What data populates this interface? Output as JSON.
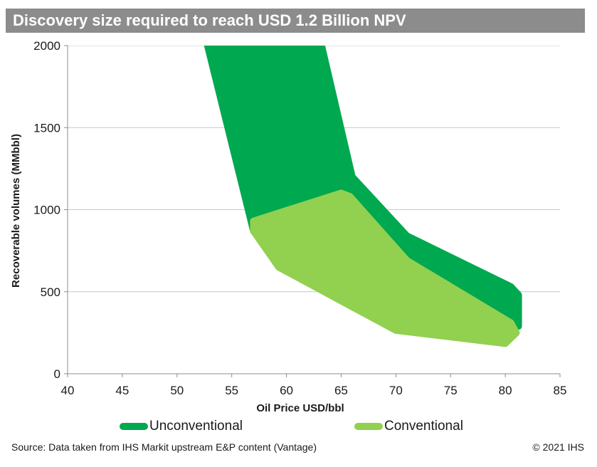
{
  "header": {
    "title": "Discovery size required to reach USD 1.2 Billion NPV"
  },
  "chart_data": {
    "type": "area",
    "title": "Discovery size required to reach USD 1.2 Billion NPV",
    "xlabel": "Oil Price USD/bbl",
    "ylabel": "Recoverable volumes (MMbbl)",
    "xlim": [
      40,
      85
    ],
    "ylim": [
      0,
      2000
    ],
    "x_ticks": [
      40,
      45,
      50,
      55,
      60,
      65,
      70,
      75,
      80,
      85
    ],
    "y_ticks": [
      0,
      500,
      1000,
      1500,
      2000
    ],
    "grid": "horizontal",
    "legend_position": "bottom",
    "series": [
      {
        "name": "Unconventional",
        "color": "#00a84f",
        "polygon": [
          [
            52.8,
            2000
          ],
          [
            63.2,
            2000
          ],
          [
            66,
            1200
          ],
          [
            71,
            840
          ],
          [
            80.5,
            530
          ],
          [
            81.2,
            480
          ],
          [
            81.2,
            290
          ],
          [
            57,
            870
          ]
        ]
      },
      {
        "name": "Conventional",
        "color": "#92d050",
        "polygon": [
          [
            57,
            930
          ],
          [
            65,
            1100
          ],
          [
            65.8,
            1080
          ],
          [
            71,
            690
          ],
          [
            80.5,
            310
          ],
          [
            81,
            250
          ],
          [
            80,
            185
          ],
          [
            70,
            265
          ],
          [
            59.3,
            650
          ],
          [
            57,
            870
          ]
        ]
      }
    ]
  },
  "legend": {
    "items": [
      {
        "label": "Unconventional",
        "color": "#00a84f"
      },
      {
        "label": "Conventional",
        "color": "#92d050"
      }
    ]
  },
  "footer": {
    "source": "Source: Data taken from IHS Markit upstream E&P content (Vantage)",
    "copyright": "© 2021 IHS"
  }
}
